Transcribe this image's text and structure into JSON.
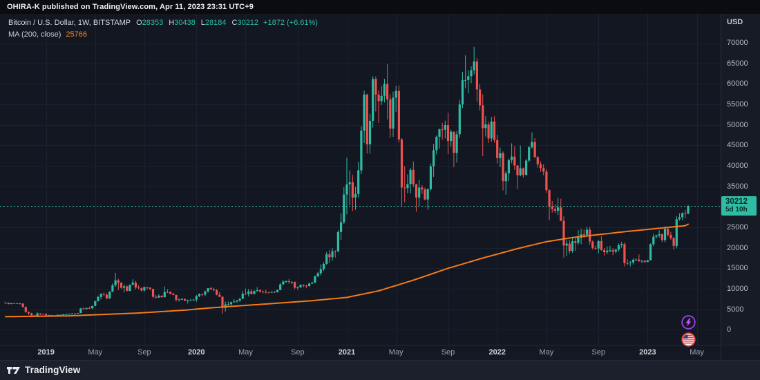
{
  "page": {
    "attribution": "OHIRA-K published on TradingView.com, Apr 11, 2023 23:31 UTC+9"
  },
  "legend": {
    "symbol": "Bitcoin / U.S. Dollar, 1W, BITSTAMP",
    "o_label": "O",
    "o_value": "28353",
    "h_label": "H",
    "h_value": "30438",
    "l_label": "L",
    "l_value": "28184",
    "c_label": "C",
    "c_value": "30212",
    "change": "+1872 (+6.61%)",
    "ma_label": "MA (200, close)",
    "ma_value": "25766"
  },
  "price_scale": {
    "unit": "USD",
    "ticks": [
      0,
      5000,
      10000,
      15000,
      20000,
      25000,
      30000,
      35000,
      40000,
      45000,
      50000,
      55000,
      60000,
      65000,
      70000
    ],
    "last_price_label": "30212",
    "countdown": "5d 10h"
  },
  "footer": {
    "brand": "TradingView"
  },
  "icons": {
    "purple_badge": "lightning-icon",
    "red_badge": "us-flag-icon"
  },
  "colors": {
    "bg": "#131722",
    "topbar_bg": "#0a0c11",
    "axis_bg": "#171b26",
    "footer_bg": "#1b202c",
    "grid": "#1c2130",
    "border": "#2a2e39",
    "text_primary": "#d5d8de",
    "text_secondary": "#b7bac2",
    "up": "#2ebda4",
    "down": "#ef5350",
    "ma": "#f57b17",
    "tag_text": "#0b2a25"
  },
  "chart_data": {
    "type": "candlestick",
    "title": "Bitcoin / U.S. Dollar",
    "exchange": "BITSTAMP",
    "interval": "1W",
    "currency": "USD",
    "start_date": "2018-10-01",
    "bar_period_days": 7,
    "first_open": 6480,
    "note": "candles are [high, low, close] per week; open = previous close",
    "candles": [
      [
        6750,
        6430,
        6600
      ],
      [
        6650,
        6200,
        6300
      ],
      [
        6600,
        6220,
        6500
      ],
      [
        6560,
        6400,
        6480
      ],
      [
        6550,
        6300,
        6380
      ],
      [
        6570,
        6330,
        6410
      ],
      [
        6440,
        5350,
        5580
      ],
      [
        5650,
        4200,
        4350
      ],
      [
        4420,
        3650,
        4050
      ],
      [
        4130,
        3470,
        3530
      ],
      [
        3630,
        3150,
        3200
      ],
      [
        4240,
        3180,
        4000
      ],
      [
        4110,
        3580,
        3850
      ],
      [
        3940,
        3630,
        3840
      ],
      [
        4090,
        3500,
        3530
      ],
      [
        3680,
        3420,
        3560
      ],
      [
        3640,
        3440,
        3550
      ],
      [
        3590,
        3350,
        3460
      ],
      [
        3700,
        3330,
        3660
      ],
      [
        3710,
        3520,
        3620
      ],
      [
        3830,
        3560,
        3760
      ],
      [
        3890,
        3700,
        3810
      ],
      [
        3950,
        3660,
        3920
      ],
      [
        4050,
        3760,
        3980
      ],
      [
        4060,
        3870,
        3980
      ],
      [
        4110,
        3900,
        4100
      ],
      [
        5350,
        4060,
        5200
      ],
      [
        5480,
        4950,
        5060
      ],
      [
        5400,
        4970,
        5300
      ],
      [
        5650,
        5170,
        5250
      ],
      [
        5850,
        5100,
        5830
      ],
      [
        7050,
        5720,
        7000
      ],
      [
        8350,
        6870,
        7990
      ],
      [
        8960,
        7430,
        8720
      ],
      [
        9090,
        8240,
        8550
      ],
      [
        8930,
        7430,
        7690
      ],
      [
        9390,
        7510,
        9320
      ],
      [
        11330,
        9220,
        10850
      ],
      [
        13880,
        10450,
        12080
      ],
      [
        12450,
        9650,
        11450
      ],
      [
        11680,
        10010,
        10250
      ],
      [
        11080,
        9140,
        10600
      ],
      [
        10800,
        9330,
        9500
      ],
      [
        11060,
        9390,
        10970
      ],
      [
        12320,
        10950,
        11520
      ],
      [
        11960,
        9870,
        10300
      ],
      [
        10930,
        9910,
        10130
      ],
      [
        10380,
        9330,
        9590
      ],
      [
        10490,
        9360,
        10450
      ],
      [
        10460,
        9880,
        10330
      ],
      [
        10350,
        9610,
        9990
      ],
      [
        10020,
        7700,
        8050
      ],
      [
        8540,
        7640,
        7870
      ],
      [
        8670,
        7810,
        8320
      ],
      [
        8410,
        7830,
        7970
      ],
      [
        10540,
        7890,
        9230
      ],
      [
        9880,
        8970,
        9200
      ],
      [
        9470,
        8650,
        8770
      ],
      [
        9060,
        8430,
        8500
      ],
      [
        8550,
        6890,
        7320
      ],
      [
        7680,
        6910,
        7400
      ],
      [
        7790,
        7230,
        7510
      ],
      [
        7660,
        7010,
        7100
      ],
      [
        7380,
        6420,
        7150
      ],
      [
        7530,
        7090,
        7290
      ],
      [
        7460,
        7090,
        7350
      ],
      [
        8460,
        6850,
        8200
      ],
      [
        8900,
        8000,
        8700
      ],
      [
        8790,
        8220,
        8600
      ],
      [
        9570,
        8240,
        9350
      ],
      [
        10170,
        9080,
        10150
      ],
      [
        10500,
        9660,
        9900
      ],
      [
        10290,
        9410,
        9650
      ],
      [
        9990,
        8400,
        8550
      ],
      [
        9190,
        8000,
        8040
      ],
      [
        8190,
        3850,
        5360
      ],
      [
        6900,
        4450,
        6200
      ],
      [
        6880,
        5860,
        6250
      ],
      [
        6860,
        5870,
        6740
      ],
      [
        7470,
        6560,
        6900
      ],
      [
        7300,
        6570,
        7130
      ],
      [
        7740,
        6810,
        7550
      ],
      [
        9480,
        7480,
        8800
      ],
      [
        10070,
        8530,
        8750
      ],
      [
        9950,
        8120,
        9370
      ],
      [
        9940,
        8640,
        8720
      ],
      [
        9620,
        8670,
        9450
      ],
      [
        10430,
        9330,
        9670
      ],
      [
        9900,
        9070,
        9350
      ],
      [
        9590,
        8900,
        9300
      ],
      [
        9780,
        8840,
        9100
      ],
      [
        9270,
        8940,
        9070
      ],
      [
        9380,
        9020,
        9230
      ],
      [
        9480,
        9050,
        9160
      ],
      [
        9800,
        9100,
        9700
      ],
      [
        11420,
        9650,
        11100
      ],
      [
        12120,
        10960,
        11750
      ],
      [
        12070,
        11430,
        11850
      ],
      [
        12390,
        11250,
        11650
      ],
      [
        11830,
        11130,
        11700
      ],
      [
        11740,
        9900,
        10250
      ],
      [
        10590,
        9830,
        10350
      ],
      [
        11100,
        10230,
        10950
      ],
      [
        11080,
        10360,
        10750
      ],
      [
        10990,
        10200,
        10670
      ],
      [
        11490,
        10520,
        11300
      ],
      [
        11730,
        11150,
        11500
      ],
      [
        13230,
        11400,
        13050
      ],
      [
        14100,
        12880,
        13800
      ],
      [
        15960,
        13290,
        14830
      ],
      [
        16480,
        14350,
        16070
      ],
      [
        18980,
        15860,
        18420
      ],
      [
        19480,
        16250,
        17720
      ],
      [
        19900,
        16880,
        19160
      ],
      [
        19420,
        17580,
        19150
      ],
      [
        24300,
        18900,
        23850
      ],
      [
        28420,
        21940,
        26250
      ],
      [
        34800,
        25830,
        33000
      ],
      [
        41950,
        28130,
        35500
      ],
      [
        38880,
        30400,
        36000
      ],
      [
        37850,
        28950,
        32250
      ],
      [
        34880,
        29250,
        33100
      ],
      [
        40950,
        32300,
        38900
      ],
      [
        49710,
        37990,
        48600
      ],
      [
        58350,
        45570,
        57400
      ],
      [
        57560,
        43020,
        45240
      ],
      [
        52670,
        43000,
        50970
      ],
      [
        61850,
        49330,
        61200
      ],
      [
        61800,
        53250,
        57370
      ],
      [
        58410,
        50430,
        55780
      ],
      [
        59470,
        54860,
        57060
      ],
      [
        61230,
        55450,
        59990
      ],
      [
        64860,
        51330,
        56220
      ],
      [
        57470,
        46930,
        49080
      ],
      [
        58100,
        47080,
        56600
      ],
      [
        59500,
        53100,
        58250
      ],
      [
        59590,
        45700,
        46450
      ],
      [
        46770,
        30000,
        34700
      ],
      [
        39940,
        31110,
        34600
      ],
      [
        37900,
        33330,
        35540
      ],
      [
        39480,
        33300,
        39020
      ],
      [
        41060,
        34780,
        35480
      ],
      [
        35650,
        28800,
        32280
      ],
      [
        36600,
        30150,
        34700
      ],
      [
        35300,
        33160,
        34240
      ],
      [
        34680,
        31550,
        31800
      ],
      [
        34500,
        29300,
        34290
      ],
      [
        40550,
        33850,
        39870
      ],
      [
        45310,
        37330,
        43790
      ],
      [
        47360,
        42780,
        47100
      ],
      [
        49100,
        44250,
        48900
      ],
      [
        50500,
        46350,
        48830
      ],
      [
        51000,
        46700,
        49940
      ],
      [
        52920,
        42840,
        46050
      ],
      [
        48820,
        44720,
        48310
      ],
      [
        48370,
        39650,
        43160
      ],
      [
        48500,
        40790,
        47690
      ],
      [
        56100,
        46910,
        54960
      ],
      [
        62930,
        54070,
        60880
      ],
      [
        66950,
        58960,
        60930
      ],
      [
        63290,
        57720,
        61860
      ],
      [
        64270,
        60180,
        63300
      ],
      [
        69000,
        62280,
        65470
      ],
      [
        66280,
        55640,
        58620
      ],
      [
        59930,
        53520,
        54750
      ],
      [
        57420,
        42330,
        49200
      ],
      [
        52100,
        47130,
        50100
      ],
      [
        50780,
        45570,
        46680
      ],
      [
        51940,
        45900,
        50800
      ],
      [
        52090,
        45650,
        46300
      ],
      [
        47570,
        40610,
        41880
      ],
      [
        44450,
        39660,
        43100
      ],
      [
        43500,
        34000,
        36250
      ],
      [
        38720,
        32950,
        38170
      ],
      [
        41740,
        36250,
        41400
      ],
      [
        45500,
        40610,
        42240
      ],
      [
        44780,
        39030,
        40080
      ],
      [
        40120,
        34300,
        37710
      ],
      [
        44950,
        37450,
        39400
      ],
      [
        39580,
        37160,
        37790
      ],
      [
        41720,
        37580,
        41280
      ],
      [
        44780,
        40920,
        44540
      ],
      [
        48190,
        44200,
        45820
      ],
      [
        46720,
        41870,
        42150
      ],
      [
        42420,
        39530,
        40400
      ],
      [
        41120,
        38540,
        39450
      ],
      [
        40380,
        37700,
        38600
      ],
      [
        39170,
        33450,
        34060
      ],
      [
        34240,
        26700,
        30080
      ],
      [
        31420,
        28600,
        29450
      ],
      [
        30670,
        28520,
        29030
      ],
      [
        32220,
        28020,
        29860
      ],
      [
        31980,
        26550,
        26570
      ],
      [
        27660,
        17600,
        20550
      ],
      [
        21850,
        17960,
        21030
      ],
      [
        21880,
        18600,
        19250
      ],
      [
        22450,
        18790,
        21590
      ],
      [
        22320,
        19230,
        21200
      ],
      [
        24280,
        20760,
        22450
      ],
      [
        24660,
        20900,
        23290
      ],
      [
        24450,
        22340,
        23180
      ],
      [
        25210,
        22660,
        24430
      ],
      [
        25050,
        20770,
        21530
      ],
      [
        21800,
        19520,
        19970
      ],
      [
        20570,
        19540,
        19830
      ],
      [
        21870,
        18640,
        21650
      ],
      [
        22800,
        19320,
        19420
      ],
      [
        19950,
        18125,
        18920
      ],
      [
        20380,
        18470,
        19310
      ],
      [
        20475,
        18920,
        19410
      ],
      [
        19950,
        18190,
        19070
      ],
      [
        19700,
        18670,
        19570
      ],
      [
        21085,
        19070,
        20630
      ],
      [
        21480,
        20000,
        20900
      ],
      [
        21350,
        15480,
        16290
      ],
      [
        17190,
        15750,
        16270
      ],
      [
        16800,
        15470,
        16460
      ],
      [
        17400,
        15920,
        17100
      ],
      [
        17420,
        16790,
        17130
      ],
      [
        18390,
        16530,
        16740
      ],
      [
        16950,
        16270,
        16840
      ],
      [
        16970,
        16380,
        16540
      ],
      [
        17040,
        16490,
        16950
      ],
      [
        21050,
        16920,
        20880
      ],
      [
        23390,
        20390,
        22710
      ],
      [
        23180,
        22300,
        23030
      ],
      [
        24255,
        22500,
        23330
      ],
      [
        23430,
        21430,
        21860
      ],
      [
        25250,
        21350,
        24630
      ],
      [
        25100,
        22700,
        23160
      ],
      [
        23900,
        21960,
        22350
      ],
      [
        22650,
        19550,
        20470
      ],
      [
        27750,
        19870,
        26980
      ],
      [
        28390,
        26600,
        27480
      ],
      [
        28650,
        26680,
        28460
      ],
      [
        29180,
        27250,
        28350
      ],
      [
        30438,
        28184,
        30212
      ]
    ],
    "current_bar": {
      "open": 28353,
      "high": 30438,
      "low": 28184,
      "close": 30212,
      "change": 1872,
      "change_pct": 6.61,
      "time_remaining": "5d 10h"
    },
    "overlays": [
      {
        "name": "MA",
        "period": 200,
        "source": "close",
        "last_value": 25766,
        "anchors": [
          [
            0,
            3200
          ],
          [
            22,
            3400
          ],
          [
            46,
            4100
          ],
          [
            62,
            4800
          ],
          [
            70,
            5300
          ],
          [
            82,
            5900
          ],
          [
            94,
            6500
          ],
          [
            106,
            7100
          ],
          [
            118,
            7900
          ],
          [
            129,
            9500
          ],
          [
            141,
            12100
          ],
          [
            153,
            15000
          ],
          [
            165,
            17500
          ],
          [
            177,
            19800
          ],
          [
            187,
            21500
          ],
          [
            196,
            22500
          ],
          [
            206,
            23300
          ],
          [
            215,
            24000
          ],
          [
            225,
            24700
          ],
          [
            235,
            25400
          ],
          [
            236,
            25766
          ]
        ]
      }
    ],
    "y_axis": {
      "unit": "USD",
      "tick_step": 5000,
      "visible_min": -3650,
      "visible_max": 77080,
      "ticks": [
        0,
        5000,
        10000,
        15000,
        20000,
        25000,
        30000,
        35000,
        40000,
        45000,
        50000,
        55000,
        60000,
        65000,
        70000
      ]
    },
    "x_axis": {
      "month_labels": {
        "4": "May",
        "8": "Sep"
      },
      "first_label_year": 2019,
      "last_label": "May 2023"
    },
    "legend_grid": true,
    "legend_position": "top-left"
  }
}
